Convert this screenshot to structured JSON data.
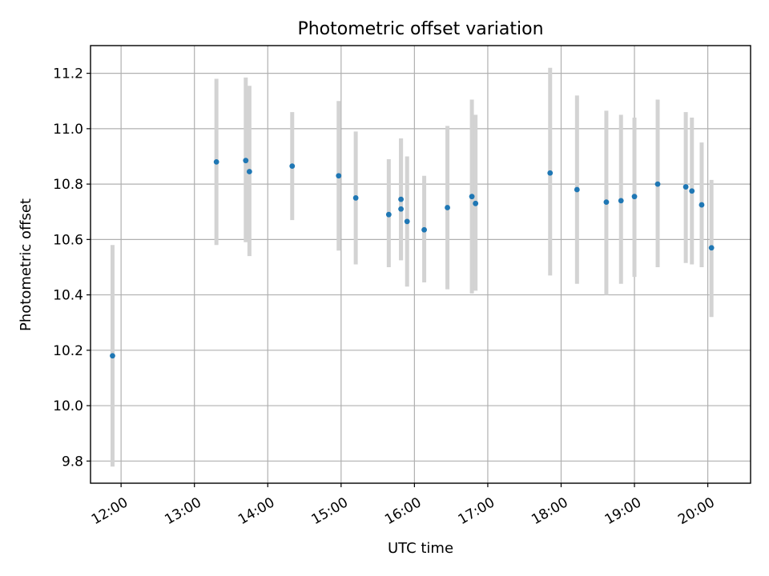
{
  "chart_data": {
    "type": "scatter",
    "title": "Photometric offset variation",
    "xlabel": "UTC time",
    "ylabel": "Photometric offset",
    "x_ticks": [
      "12:00",
      "13:00",
      "14:00",
      "15:00",
      "16:00",
      "17:00",
      "18:00",
      "19:00",
      "20:00"
    ],
    "y_ticks": [
      "9.8",
      "10.0",
      "10.2",
      "10.4",
      "10.6",
      "10.8",
      "11.0",
      "11.2"
    ],
    "xlim": [
      "11:35",
      "20:35"
    ],
    "ylim": [
      9.72,
      11.3
    ],
    "grid": true,
    "colors": {
      "points": "#1f77b4",
      "error_bars": "#d3d3d3",
      "grid": "#b0b0b0"
    },
    "series": [
      {
        "points": [
          {
            "x": "11:53",
            "y": 10.18,
            "ylo": 9.78,
            "yhi": 10.58
          },
          {
            "x": "13:18",
            "y": 10.88,
            "ylo": 10.58,
            "yhi": 11.18
          },
          {
            "x": "13:42",
            "y": 10.885,
            "ylo": 10.59,
            "yhi": 11.185
          },
          {
            "x": "13:45",
            "y": 10.845,
            "ylo": 10.54,
            "yhi": 11.155
          },
          {
            "x": "14:20",
            "y": 10.865,
            "ylo": 10.67,
            "yhi": 11.06
          },
          {
            "x": "14:58",
            "y": 10.83,
            "ylo": 10.56,
            "yhi": 11.1
          },
          {
            "x": "15:12",
            "y": 10.75,
            "ylo": 10.51,
            "yhi": 10.99
          },
          {
            "x": "15:39",
            "y": 10.69,
            "ylo": 10.5,
            "yhi": 10.89
          },
          {
            "x": "15:49",
            "y": 10.745,
            "ylo": 10.525,
            "yhi": 10.965
          },
          {
            "x": "15:49",
            "y": 10.71,
            "ylo": 10.525,
            "yhi": 10.965
          },
          {
            "x": "15:54",
            "y": 10.665,
            "ylo": 10.43,
            "yhi": 10.9
          },
          {
            "x": "16:08",
            "y": 10.635,
            "ylo": 10.445,
            "yhi": 10.83
          },
          {
            "x": "16:27",
            "y": 10.715,
            "ylo": 10.42,
            "yhi": 11.01
          },
          {
            "x": "16:47",
            "y": 10.755,
            "ylo": 10.405,
            "yhi": 11.105
          },
          {
            "x": "16:50",
            "y": 10.73,
            "ylo": 10.415,
            "yhi": 11.05
          },
          {
            "x": "17:51",
            "y": 10.84,
            "ylo": 10.47,
            "yhi": 11.22
          },
          {
            "x": "18:13",
            "y": 10.78,
            "ylo": 10.44,
            "yhi": 11.12
          },
          {
            "x": "18:37",
            "y": 10.735,
            "ylo": 10.4,
            "yhi": 11.065
          },
          {
            "x": "18:49",
            "y": 10.74,
            "ylo": 10.44,
            "yhi": 11.05
          },
          {
            "x": "19:00",
            "y": 10.755,
            "ylo": 10.465,
            "yhi": 11.04
          },
          {
            "x": "19:19",
            "y": 10.8,
            "ylo": 10.5,
            "yhi": 11.105
          },
          {
            "x": "19:42",
            "y": 10.79,
            "ylo": 10.515,
            "yhi": 11.06
          },
          {
            "x": "19:47",
            "y": 10.775,
            "ylo": 10.51,
            "yhi": 11.04
          },
          {
            "x": "19:55",
            "y": 10.725,
            "ylo": 10.5,
            "yhi": 10.95
          },
          {
            "x": "20:03",
            "y": 10.57,
            "ylo": 10.32,
            "yhi": 10.815
          }
        ]
      }
    ]
  }
}
